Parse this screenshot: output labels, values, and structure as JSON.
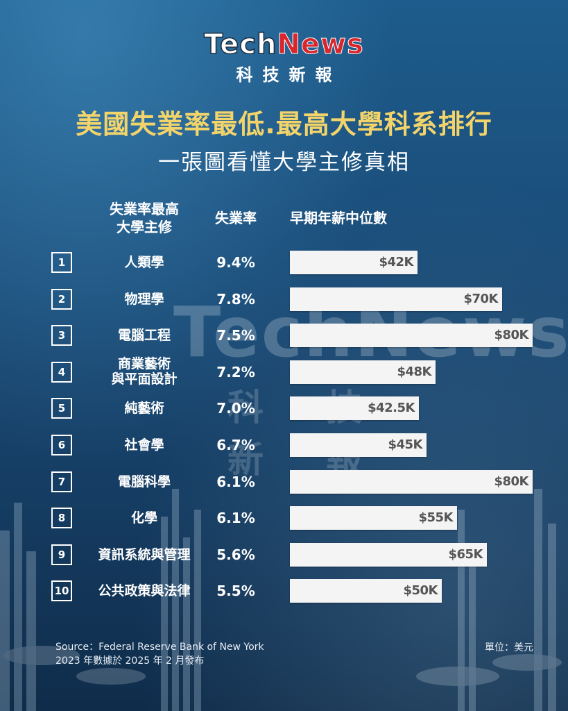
{
  "logo": {
    "tech": "Tech",
    "news": "News",
    "sub": "科技新報"
  },
  "title": "美國失業率最低.最高大學科系排行",
  "subtitle": "一張圖看懂大學主修真相",
  "headers": {
    "major_line1": "失業率最高",
    "major_line2": "大學主修",
    "rate": "失業率",
    "salary": "早期年薪中位數"
  },
  "watermark": {
    "main": "TechNews",
    "sub": "科技新報"
  },
  "source_line1": "Source：Federal Reserve Bank of New York",
  "source_line2": "2023 年數據於 2025 年 2 月發布",
  "unit": "單位：美元",
  "colors": {
    "title": "#f3d46a",
    "bar": "#f4f4f4",
    "logo_news": "#d9262c"
  },
  "chart_data": {
    "type": "table",
    "salary_max": 80,
    "rows": [
      {
        "rank": "1",
        "major": [
          "人類學"
        ],
        "rate": "9.4%",
        "salary": 42,
        "salary_label": "$42K"
      },
      {
        "rank": "2",
        "major": [
          "物理學"
        ],
        "rate": "7.8%",
        "salary": 70,
        "salary_label": "$70K"
      },
      {
        "rank": "3",
        "major": [
          "電腦工程"
        ],
        "rate": "7.5%",
        "salary": 80,
        "salary_label": "$80K"
      },
      {
        "rank": "4",
        "major": [
          "商業藝術",
          "與平面設計"
        ],
        "rate": "7.2%",
        "salary": 48,
        "salary_label": "$48K"
      },
      {
        "rank": "5",
        "major": [
          "純藝術"
        ],
        "rate": "7.0%",
        "salary": 42.5,
        "salary_label": "$42.5K"
      },
      {
        "rank": "6",
        "major": [
          "社會學"
        ],
        "rate": "6.7%",
        "salary": 45,
        "salary_label": "$45K"
      },
      {
        "rank": "7",
        "major": [
          "電腦科學"
        ],
        "rate": "6.1%",
        "salary": 80,
        "salary_label": "$80K"
      },
      {
        "rank": "8",
        "major": [
          "化學"
        ],
        "rate": "6.1%",
        "salary": 55,
        "salary_label": "$55K"
      },
      {
        "rank": "9",
        "major": [
          "資訊系統與管理"
        ],
        "rate": "5.6%",
        "salary": 65,
        "salary_label": "$65K"
      },
      {
        "rank": "10",
        "major": [
          "公共政策與法律"
        ],
        "rate": "5.5%",
        "salary": 50,
        "salary_label": "$50K"
      }
    ]
  }
}
